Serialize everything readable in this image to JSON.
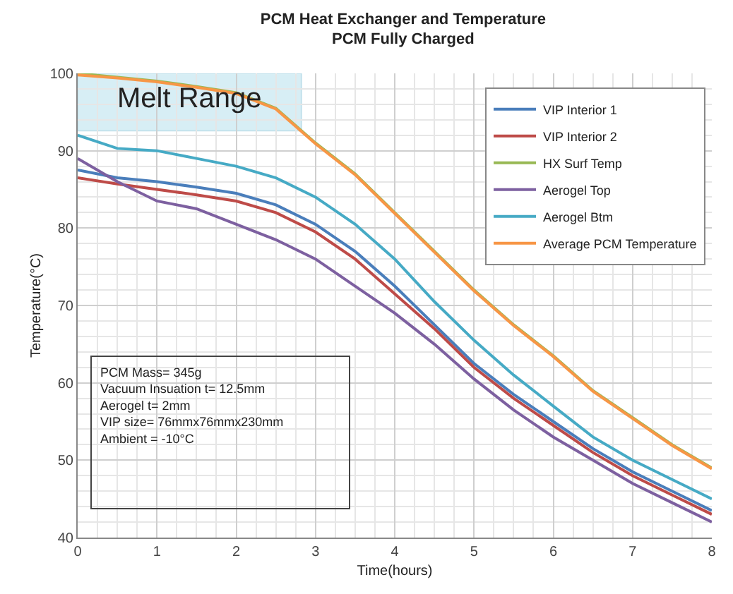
{
  "chart_data": {
    "type": "line",
    "title": "PCM Heat Exchanger and Temperature",
    "subtitle": "PCM Fully Charged",
    "xlabel": "Time(hours)",
    "ylabel": "Temperature(°C)",
    "x": [
      0,
      0.5,
      1,
      1.5,
      2,
      2.5,
      3,
      3.5,
      4,
      4.5,
      5,
      5.5,
      6,
      6.5,
      7,
      7.5,
      8
    ],
    "series": [
      {
        "name": "VIP Interior 1",
        "color": "#4a7ebb",
        "values": [
          87.5,
          86.5,
          86,
          85.3,
          84.5,
          83,
          80.5,
          77,
          72.5,
          67.5,
          62.5,
          58.5,
          55,
          51.5,
          48.5,
          46,
          43.5
        ]
      },
      {
        "name": "VIP Interior 2",
        "color": "#be4b48",
        "values": [
          86.5,
          85.7,
          85,
          84.3,
          83.5,
          82,
          79.5,
          76,
          71.5,
          67,
          62,
          58,
          54.5,
          51,
          48,
          45.5,
          43
        ]
      },
      {
        "name": "HX Surf Temp",
        "color": "#98b954",
        "values": [
          100,
          99.5,
          99,
          98.3,
          97.5,
          95.5,
          91,
          87,
          82,
          77,
          72,
          67.5,
          63.5,
          59,
          55.5,
          52,
          49
        ]
      },
      {
        "name": "Aerogel Top",
        "color": "#7d60a0",
        "values": [
          89,
          86,
          83.5,
          82.5,
          80.5,
          78.5,
          76,
          72.5,
          69,
          65,
          60.5,
          56.5,
          53,
          50,
          47,
          44.5,
          42
        ]
      },
      {
        "name": "Aerogel Btm",
        "color": "#46aac5",
        "values": [
          92,
          90.3,
          90,
          89,
          88,
          86.5,
          84,
          80.5,
          76,
          70.5,
          65.5,
          61,
          57,
          53,
          50,
          47.5,
          45
        ]
      },
      {
        "name": "Average PCM Temperature",
        "color": "#f79646",
        "values": [
          99.8,
          99.4,
          98.9,
          98.2,
          97.4,
          95.4,
          90.9,
          86.9,
          81.9,
          76.9,
          71.9,
          67.4,
          63.4,
          58.9,
          55.4,
          51.9,
          48.9
        ]
      }
    ],
    "xlim": [
      0,
      8
    ],
    "xticks": [
      0,
      1,
      2,
      3,
      4,
      5,
      6,
      7,
      8
    ],
    "ylim": [
      40,
      100
    ],
    "yticks": [
      40,
      50,
      60,
      70,
      80,
      90,
      100
    ],
    "bands": [
      {
        "axis": "y",
        "from": 92.6,
        "to": 100,
        "label": "Melt Range",
        "color": "#bde3ef"
      }
    ],
    "annotations": [
      "PCM Mass= 345g\nVacuum Insuation t= 12.5mm\nAerogel t= 2mm\nVIP size= 76mmx76mmx230mm\nAmbient = -10°C"
    ],
    "grid": true,
    "legend": "top right",
    "marker": "none",
    "line_style": "solid"
  }
}
